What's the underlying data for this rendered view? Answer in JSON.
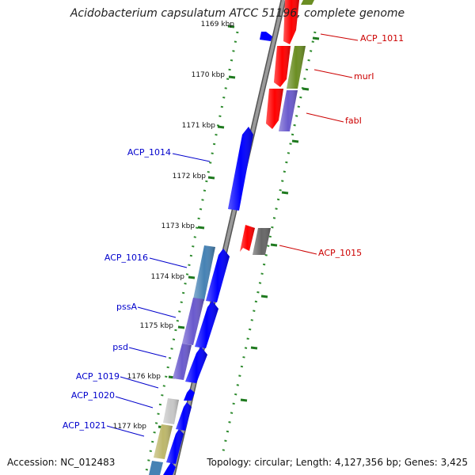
{
  "title": "Acidobacterium capsulatum ATCC 51196, complete genome",
  "accession": "Accession: NC_012483",
  "summary": "Topology: circular; Length: 4,127,356 bp; Genes: 3,425",
  "colors": {
    "backbone": "#8a8a8a",
    "tick": "#1f7a1f",
    "forward_label": "#cc0000",
    "reverse_label": "#0000cc",
    "red": "#ff0000",
    "olive": "#6b8e23",
    "purple": "#6a5acd",
    "blue": "#0000ff",
    "steel": "#4682b4",
    "gray": "#666666",
    "khaki": "#bdb76b"
  },
  "scale_labels": [
    "1169 kbp",
    "1170 kbp",
    "1171 kbp",
    "1172 kbp",
    "1173 kbp",
    "1174 kbp",
    "1175 kbp",
    "1176 kbp",
    "1177 kbp"
  ],
  "forward_labels": [
    "ACP_1011",
    "murI",
    "fabI",
    "ACP_1015"
  ],
  "reverse_labels": [
    "ACP_1014",
    "ACP_1016",
    "pssA",
    "psd",
    "ACP_1019",
    "ACP_1020",
    "ACP_1021"
  ]
}
